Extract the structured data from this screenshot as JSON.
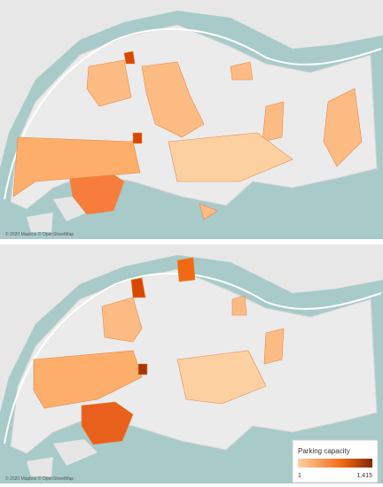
{
  "maps": [
    {
      "attribution": "© 2020 Mapbox © OpenStreetMap"
    },
    {
      "attribution": "© 2020 Mapbox © OpenStreetMap"
    }
  ],
  "legend": {
    "title": "Parking capacity",
    "min": 1,
    "max": {
      "value": 1415,
      "label": "1,415"
    }
  }
}
